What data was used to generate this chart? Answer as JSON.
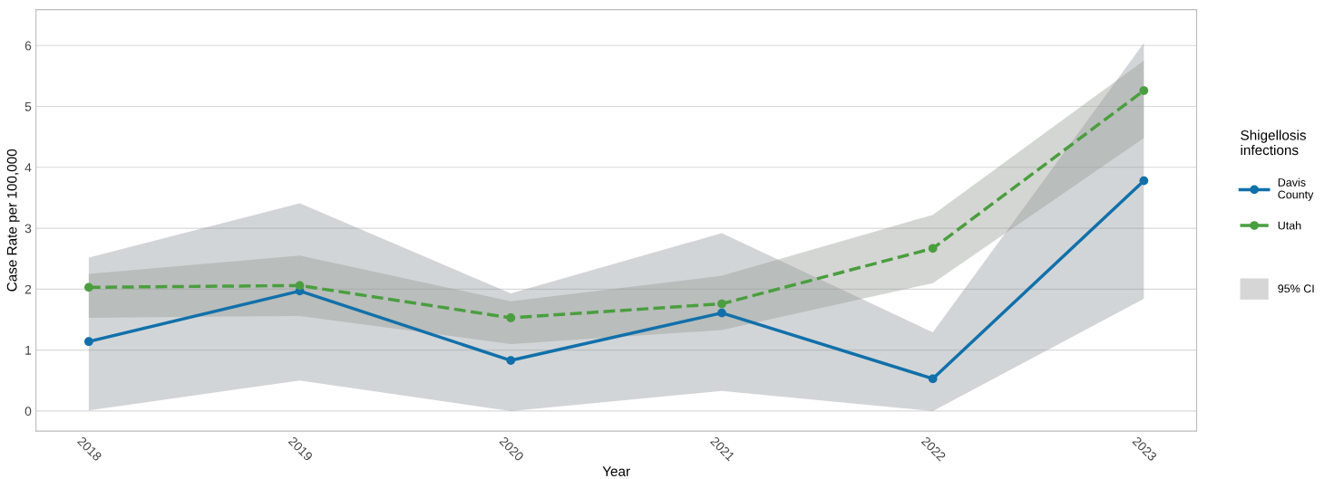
{
  "chart_data": {
    "type": "line",
    "xlabel": "Year",
    "ylabel": "Case Rate per 100,000",
    "legend_title": "Shigellosis\ninfections",
    "categories": [
      "2018",
      "2019",
      "2020",
      "2021",
      "2022",
      "2023"
    ],
    "series": [
      {
        "name": "Davis\nCounty",
        "color": "#1170aa",
        "line_style": "solid",
        "values": [
          1.14,
          1.97,
          0.83,
          1.61,
          0.53,
          3.78
        ],
        "lower": [
          0.01,
          0.5,
          0.0,
          0.33,
          0.0,
          1.84
        ],
        "upper": [
          2.52,
          3.41,
          1.93,
          2.92,
          1.29,
          6.04
        ]
      },
      {
        "name": "Utah",
        "color": "#4a9e3f",
        "line_style": "dashed",
        "values": [
          2.03,
          2.06,
          1.53,
          1.76,
          2.67,
          5.26
        ],
        "lower": [
          1.53,
          1.56,
          1.1,
          1.33,
          2.1,
          4.48
        ],
        "upper": [
          2.25,
          2.55,
          1.8,
          2.22,
          3.22,
          5.75
        ]
      }
    ],
    "annotations": [
      "95% CI"
    ],
    "ylim": [
      -0.33,
      6.59
    ],
    "yticks": [
      0,
      1,
      2,
      3,
      4,
      5,
      6
    ],
    "grid": "y",
    "legend": "right",
    "marker": "circle"
  }
}
